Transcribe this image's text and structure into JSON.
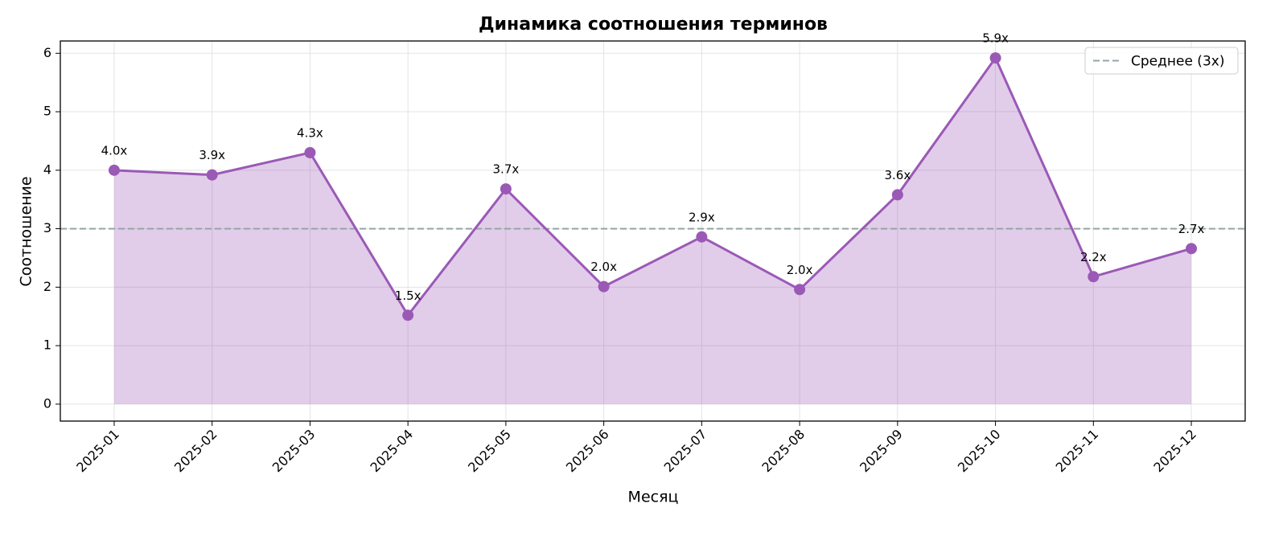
{
  "chart_data": {
    "type": "line",
    "title": "Динамика соотношения терминов",
    "x_label": "Месяц",
    "y_label": "Соотношение",
    "categories": [
      "2025-01",
      "2025-02",
      "2025-03",
      "2025-04",
      "2025-05",
      "2025-06",
      "2025-07",
      "2025-08",
      "2025-09",
      "2025-10",
      "2025-11",
      "2025-12"
    ],
    "values": [
      4.0,
      3.92,
      4.3,
      1.52,
      3.68,
      2.01,
      2.86,
      1.96,
      3.58,
      5.92,
      2.18,
      2.66
    ],
    "value_labels": [
      "4.0x",
      "3.9x",
      "4.3x",
      "1.5x",
      "3.7x",
      "2.0x",
      "2.9x",
      "2.0x",
      "3.6x",
      "5.9x",
      "2.2x",
      "2.7x"
    ],
    "color": "#9b59b6",
    "fill_area": true,
    "reference_line": {
      "value": 3,
      "label": "Среднее (3x)",
      "color": "#95a5a6"
    },
    "ylim": [
      -0.29,
      6.21
    ],
    "yticks": [
      0,
      1,
      2,
      3,
      4,
      5,
      6
    ],
    "grid": true,
    "legend": "upper right"
  }
}
